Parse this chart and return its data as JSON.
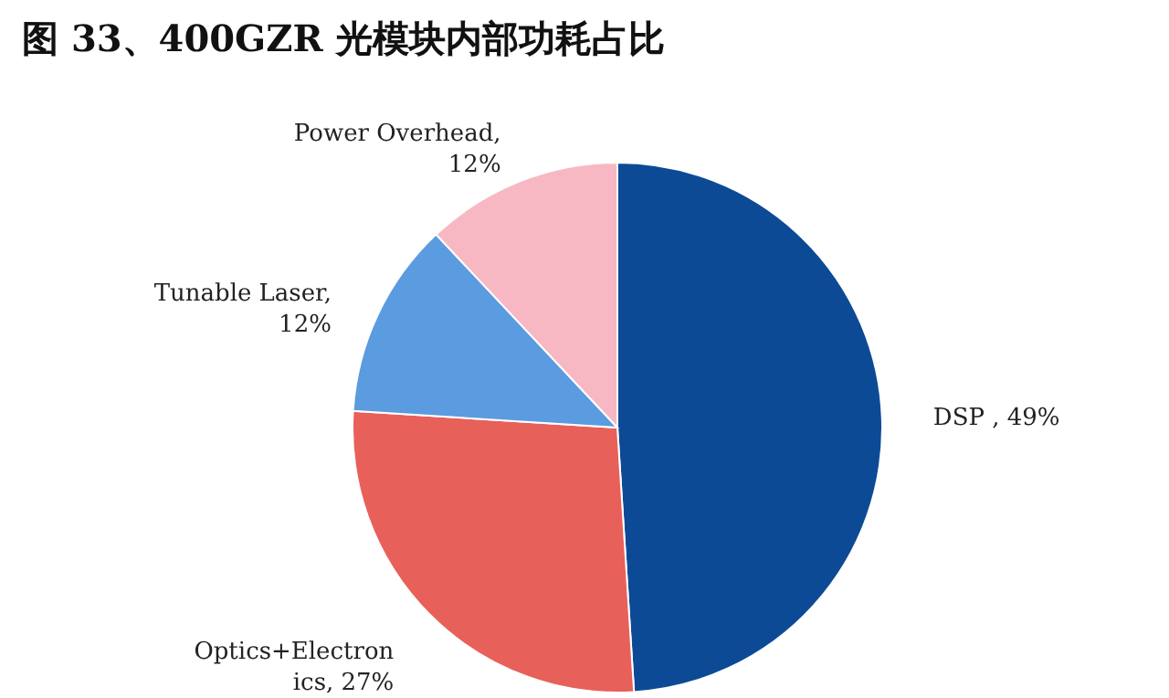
{
  "chart_data": {
    "type": "pie",
    "title": "图 33、400GZR 光模块内部功耗占比",
    "categories": [
      "DSP , 49%",
      "Optics+Electronics, 27%",
      "Tunable Laser, 12%",
      "Power Overhead, 12%"
    ],
    "values": [
      49,
      27,
      12,
      12
    ],
    "colors": [
      "#0d4a96",
      "#e8605a",
      "#5b9be0",
      "#f7b8c4"
    ]
  }
}
